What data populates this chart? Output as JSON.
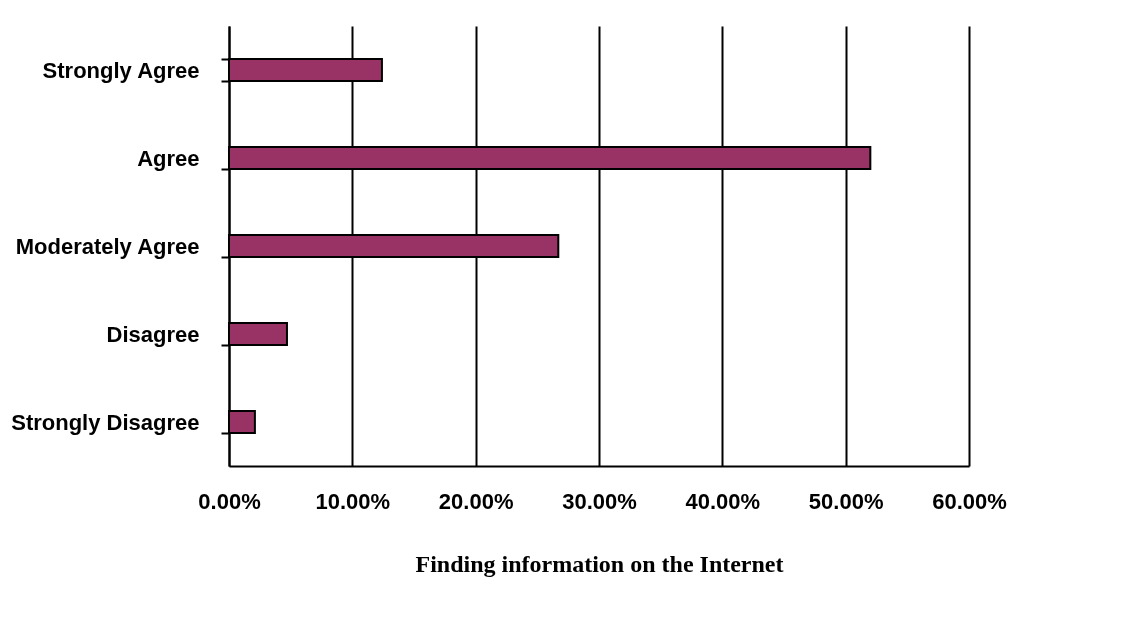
{
  "chart_data": {
    "type": "bar",
    "orientation": "horizontal",
    "categories": [
      "Strongly Agree",
      "Agree",
      "Moderately Agree",
      "Disagree",
      "Strongly Disagree"
    ],
    "values": [
      12.4,
      52.0,
      26.7,
      4.7,
      2.1
    ],
    "color": "#993366",
    "xlabel": "Finding information on the Internet",
    "xlim": [
      0,
      60
    ],
    "xticks": [
      {
        "value": 0,
        "label": "0.00%"
      },
      {
        "value": 10,
        "label": "10.00%"
      },
      {
        "value": 20,
        "label": "20.00%"
      },
      {
        "value": 30,
        "label": "30.00%"
      },
      {
        "value": 40,
        "label": "40.00%"
      },
      {
        "value": 50,
        "label": "50.00%"
      },
      {
        "value": 60,
        "label": "60.00%"
      }
    ],
    "grid": "x"
  }
}
